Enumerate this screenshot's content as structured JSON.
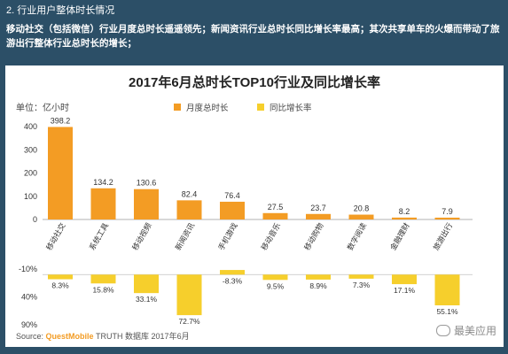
{
  "header": {
    "section_title": "2. 行业用户整体时长情况",
    "subtitle": "移动社交（包括微信）行业月度总时长遥遥领先；新闻资讯行业总时长同比增长率最高；其次共享单车的火爆而带动了旅游出行整体行业总时长的增长；"
  },
  "colors": {
    "background": "#2c4f67",
    "bar_primary": "#f39c24",
    "bar_secondary": "#f6cf2c"
  },
  "watermark": {
    "text": "最美应用",
    "icon": "wechat-icon"
  },
  "chart_data": {
    "type": "bar",
    "title": "2017年6月总时长TOP10行业及同比增长率",
    "unit_label": "单位：亿小时",
    "categories": [
      "移动社交",
      "系统工具",
      "移动视频",
      "新闻资讯",
      "手机游戏",
      "移动音乐",
      "移动购物",
      "数字阅读",
      "金融理财",
      "旅游出行"
    ],
    "series": [
      {
        "name": "月度总时长",
        "values": [
          398.2,
          134.2,
          130.6,
          82.4,
          76.4,
          27.5,
          23.7,
          20.8,
          8.2,
          7.9
        ],
        "labels": [
          "398.2",
          "134.2",
          "130.6",
          "82.4",
          "76.4",
          "27.5",
          "23.7",
          "20.8",
          "8.2",
          "7.9"
        ]
      },
      {
        "name": "同比增长率",
        "values": [
          8.3,
          15.8,
          33.1,
          72.7,
          -8.3,
          9.5,
          8.9,
          7.3,
          17.1,
          55.1
        ],
        "labels": [
          "8.3%",
          "15.8%",
          "33.1%",
          "72.7%",
          "-8.3%",
          "9.5%",
          "8.9%",
          "7.3%",
          "17.1%",
          "55.1%"
        ]
      }
    ],
    "y_top": {
      "ylim": [
        0,
        400
      ],
      "ticks": [
        "400",
        "300",
        "200",
        "100",
        "0"
      ]
    },
    "y_bottom": {
      "ylim": [
        -10,
        90
      ],
      "ticks": [
        "-10%",
        "40%",
        "90%"
      ]
    },
    "legend_placement": "top-center",
    "source_label": "Source:",
    "source_brand": "QuestMobile",
    "source_rest": "TRUTH 数据库 2017年6月"
  }
}
